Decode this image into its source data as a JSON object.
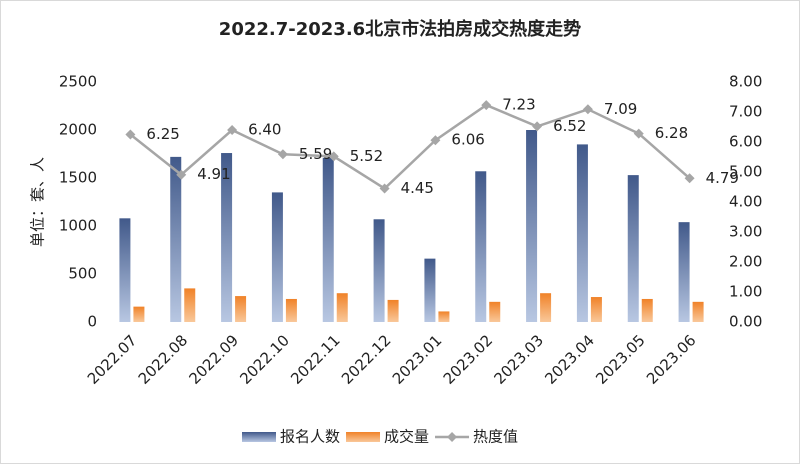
{
  "chart_data": {
    "type": "bar-line",
    "title": "2022.7-2023.6北京市法拍房成交热度走势",
    "ylabel": "单位：套、人",
    "categories": [
      "2022.07",
      "2022.08",
      "2022.09",
      "2022.10",
      "2022.11",
      "2022.12",
      "2023.01",
      "2023.02",
      "2023.03",
      "2023.04",
      "2023.05",
      "2023.06"
    ],
    "series": [
      {
        "name": "报名人数",
        "color": "#41598a",
        "type": "bar",
        "values": [
          1080,
          1720,
          1760,
          1350,
          1710,
          1070,
          660,
          1570,
          2000,
          1850,
          1530,
          1040
        ]
      },
      {
        "name": "成交量",
        "color": "#f08228",
        "type": "bar",
        "values": [
          160,
          350,
          270,
          240,
          300,
          230,
          110,
          210,
          300,
          260,
          240,
          210
        ]
      },
      {
        "name": "热度值",
        "color": "#a6a6a6",
        "type": "line",
        "axis": "y2",
        "values": [
          6.25,
          4.91,
          6.4,
          5.59,
          5.52,
          4.45,
          6.06,
          7.23,
          6.52,
          7.09,
          6.28,
          4.79
        ],
        "value_labels": [
          "6.25",
          "4.91",
          "6.40",
          "5.59",
          "5.52",
          "4.45",
          "6.06",
          "7.23",
          "6.52",
          "7.09",
          "6.28",
          "4.79"
        ]
      }
    ],
    "ylim": [
      0,
      2500
    ],
    "yticks": [
      0,
      500,
      1000,
      1500,
      2000,
      2500
    ],
    "y2lim": [
      0,
      8
    ],
    "y2ticks": [
      {
        "value": 0,
        "label": "0.00"
      },
      {
        "value": 1,
        "label": "1.00"
      },
      {
        "value": 2,
        "label": "2.00"
      },
      {
        "value": 3,
        "label": "3.00"
      },
      {
        "value": 4,
        "label": "4.00"
      },
      {
        "value": 5,
        "label": "5.00"
      },
      {
        "value": 6,
        "label": "6.00"
      },
      {
        "value": 7,
        "label": "7.00"
      },
      {
        "value": 8,
        "label": "8.00"
      }
    ],
    "legend": "bottom"
  }
}
